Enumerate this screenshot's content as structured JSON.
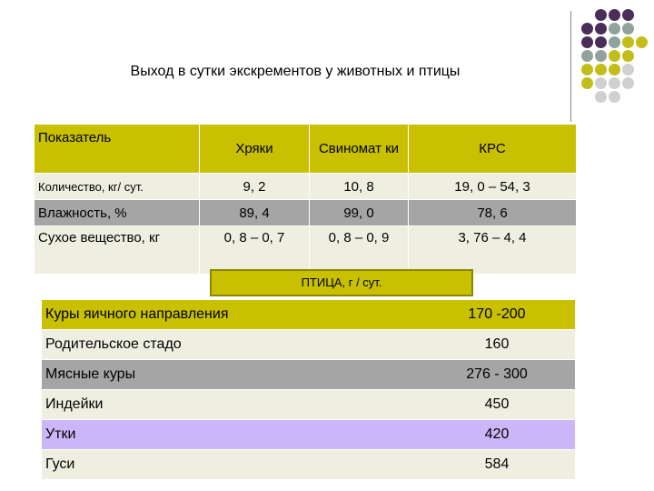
{
  "title": "Выход  в сутки экскрементов у животных и птицы",
  "decor": {
    "dot_colors": [
      "#4b2d5a",
      "#8fa29b",
      "#c3bd1a",
      "#cfd0cf"
    ]
  },
  "animals_table": {
    "header": {
      "label": "Показатель",
      "cols": [
        "Хряки",
        "Свиномат ки",
        "КРС"
      ]
    },
    "rows": [
      {
        "label": "Количество, кг/ сут.",
        "values": [
          "9, 2",
          "10, 8",
          "19, 0 – 54, 3"
        ]
      },
      {
        "label": "Влажность, %",
        "values": [
          "89, 4",
          "99, 0",
          "78, 6"
        ]
      },
      {
        "label": "Сухое вещество, кг",
        "values": [
          "0, 8 – 0, 7",
          "0, 8 – 0, 9",
          "3, 76 – 4, 4"
        ]
      }
    ]
  },
  "poultry": {
    "header": "ПТИЦА, г / сут.",
    "rows": [
      {
        "name": "Куры яичного направления",
        "value": "170 -200"
      },
      {
        "name": "Родительское стадо",
        "value": "160"
      },
      {
        "name": "Мясные куры",
        "value": "276 - 300"
      },
      {
        "name": "Индейки",
        "value": "450"
      },
      {
        "name": "Утки",
        "value": "420"
      },
      {
        "name": "Гуси",
        "value": "584"
      }
    ]
  }
}
